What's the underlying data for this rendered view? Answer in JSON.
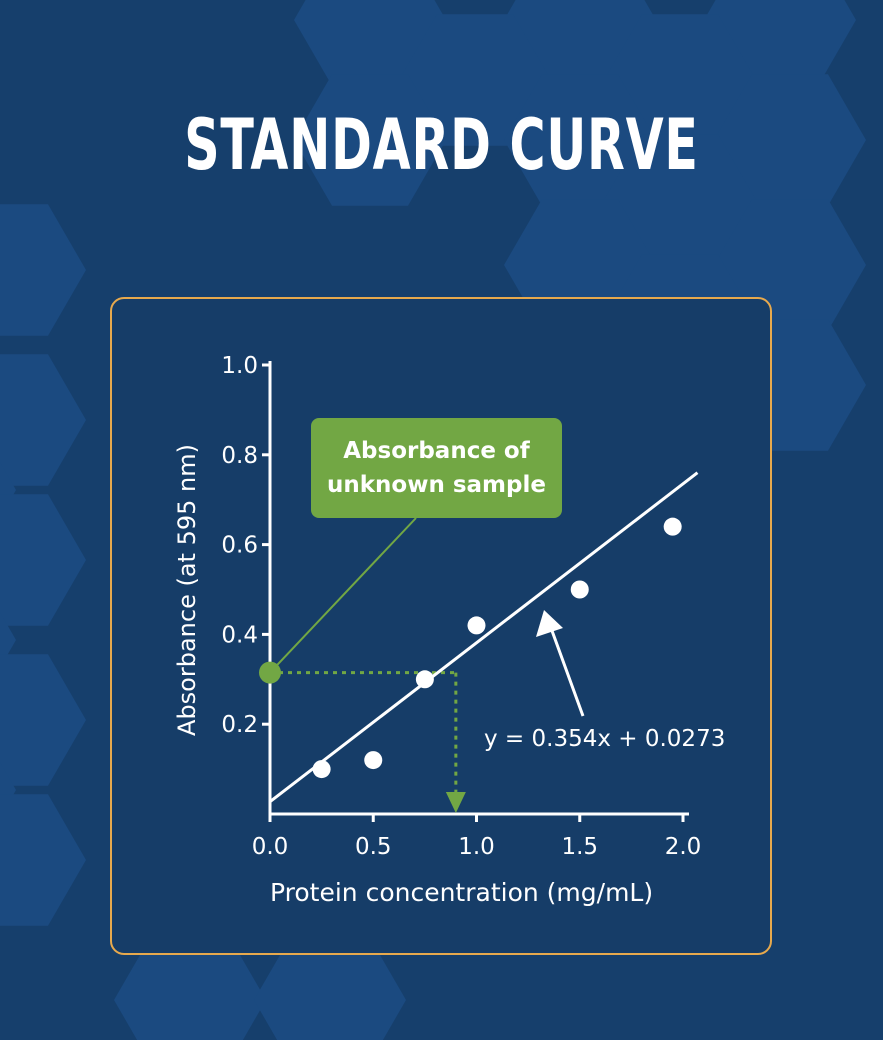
{
  "title": "STANDARD CURVE",
  "colors": {
    "background": "#163f6c",
    "hexagon": "#1b4a80",
    "panel_border": "#e7a94d",
    "accent_green": "#72a744",
    "foreground": "#ffffff"
  },
  "chart_data": {
    "type": "scatter",
    "xlabel": "Protein concentration (mg/mL)",
    "ylabel": "Absorbance (at 595 nm)",
    "xlim": [
      0,
      2.0
    ],
    "ylim": [
      0,
      1.0
    ],
    "x_ticks": [
      0.0,
      0.5,
      1.0,
      1.5,
      2.0
    ],
    "x_tick_labels": [
      "0.0",
      "0.5",
      "1.0",
      "1.5",
      "2.0"
    ],
    "y_ticks": [
      0.2,
      0.4,
      0.6,
      0.8,
      1.0
    ],
    "y_tick_labels": [
      "0.2",
      "0.4",
      "0.6",
      "0.8",
      "1.0"
    ],
    "points": [
      {
        "x": 0.25,
        "y": 0.1
      },
      {
        "x": 0.5,
        "y": 0.12
      },
      {
        "x": 0.75,
        "y": 0.3
      },
      {
        "x": 1.0,
        "y": 0.42
      },
      {
        "x": 1.5,
        "y": 0.5
      },
      {
        "x": 1.95,
        "y": 0.64
      }
    ],
    "fit_line": {
      "x_start": 0.0,
      "x_end": 2.07,
      "slope": 0.354,
      "intercept": 0.0273
    },
    "equation": "y = 0.354x + 0.0273",
    "unknown_sample": {
      "x": 0.9,
      "y": 0.315
    },
    "annotation": "Absorbance of unknown sample"
  }
}
